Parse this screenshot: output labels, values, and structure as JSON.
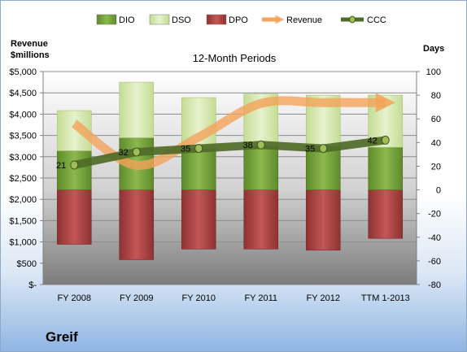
{
  "chart_data": {
    "type": "bar",
    "title": "12-Month Periods",
    "left_axis_title": "Revenue\n$millions",
    "right_axis_title": "Days",
    "categories": [
      "FY 2008",
      "FY 2009",
      "FY 2010",
      "FY 2011",
      "FY 2012",
      "TTM 1-2013"
    ],
    "left_axis": {
      "min": 0,
      "max": 5000,
      "step": 500,
      "tick_labels": [
        "$-",
        "$500",
        "$1,000",
        "$1,500",
        "$2,000",
        "$2,500",
        "$3,000",
        "$3,500",
        "$4,000",
        "$4,500",
        "$5,000"
      ]
    },
    "right_axis": {
      "min": -80,
      "max": 100,
      "step": 20,
      "tick_labels": [
        "-80",
        "-60",
        "-40",
        "-20",
        "0",
        "20",
        "40",
        "60",
        "80",
        "100"
      ]
    },
    "grid": true,
    "legend_position": "top",
    "legend": [
      "DIO",
      "DSO",
      "DPO",
      "Revenue",
      "CCC"
    ],
    "series": [
      {
        "name": "DIO",
        "axis": "right",
        "color": "#76a13d",
        "values": [
          33,
          44,
          35,
          37,
          37,
          36
        ]
      },
      {
        "name": "DSO",
        "axis": "right",
        "color": "#d8e8b6",
        "values": [
          34,
          47,
          43,
          44,
          43,
          44
        ]
      },
      {
        "name": "DPO",
        "axis": "right",
        "color": "#b04848",
        "values": [
          -46,
          -59,
          -50,
          -50,
          -51,
          -41
        ]
      },
      {
        "name": "Revenue",
        "axis": "left",
        "color": "#f3a35a",
        "values": [
          3780,
          2800,
          3460,
          4250,
          4270,
          4270
        ]
      },
      {
        "name": "CCC",
        "axis": "right",
        "color": "#4f6b28",
        "values": [
          21,
          32,
          35,
          38,
          35,
          42
        ]
      }
    ],
    "data_labels": [
      "21",
      "32",
      "35",
      "38",
      "35",
      "42"
    ]
  },
  "company": "Greif"
}
